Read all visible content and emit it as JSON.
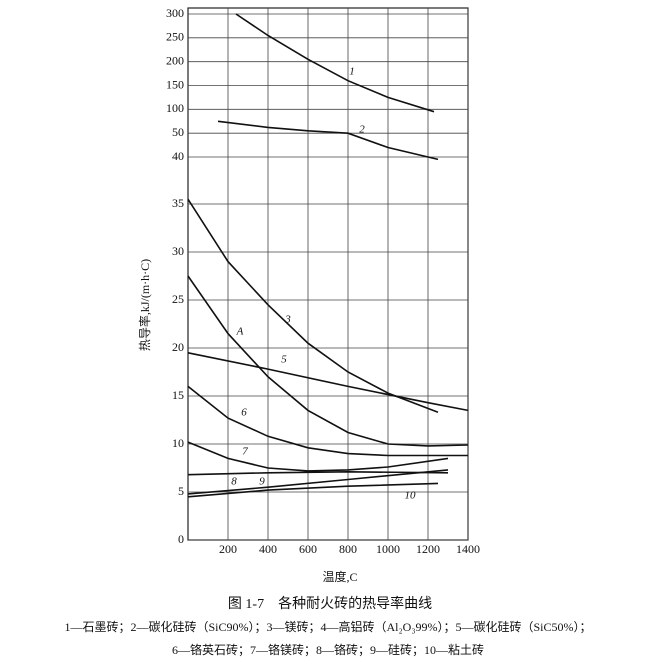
{
  "chart_data": [
    {
      "type": "line",
      "yticks": [
        40,
        50,
        100,
        150,
        200,
        250,
        300
      ],
      "ylim": [
        40,
        300
      ],
      "grid": true,
      "series": [
        {
          "name": "1",
          "color": "#111111",
          "x": [
            240,
            400,
            600,
            800,
            1000,
            1230
          ],
          "values": [
            300,
            255,
            205,
            160,
            125,
            95
          ]
        },
        {
          "name": "2",
          "color": "#111111",
          "x": [
            150,
            400,
            600,
            800,
            1000,
            1250
          ],
          "values": [
            75,
            62,
            55,
            50,
            44,
            39
          ]
        }
      ]
    },
    {
      "type": "line",
      "xlabel": "温度,C",
      "ylabel": "热导率,kJ/(m·h·C)",
      "xlim": [
        0,
        1400
      ],
      "xticks": [
        200,
        400,
        600,
        800,
        1000,
        1200,
        1400
      ],
      "ylim": [
        0,
        35
      ],
      "yticks": [
        0,
        5,
        10,
        15,
        20,
        25,
        30,
        35
      ],
      "grid": true,
      "series": [
        {
          "name": "3",
          "color": "#111111",
          "x": [
            0,
            200,
            400,
            600,
            800,
            1000,
            1250
          ],
          "values": [
            35.5,
            29,
            24.5,
            20.5,
            17.5,
            15.3,
            13.3
          ]
        },
        {
          "name": "A",
          "color": "#111111",
          "x": [
            0,
            200,
            400,
            600,
            800,
            1000,
            1200,
            1400
          ],
          "values": [
            27.5,
            21.5,
            17,
            13.5,
            11.2,
            10,
            9.8,
            9.9
          ]
        },
        {
          "name": "5",
          "color": "#111111",
          "x": [
            0,
            400,
            800,
            1200,
            1400
          ],
          "values": [
            19.5,
            17.8,
            16,
            14.3,
            13.5
          ]
        },
        {
          "name": "6",
          "color": "#111111",
          "x": [
            0,
            200,
            400,
            600,
            800,
            1000,
            1400
          ],
          "values": [
            16,
            12.7,
            10.8,
            9.6,
            9,
            8.8,
            8.8
          ]
        },
        {
          "name": "7",
          "color": "#111111",
          "x": [
            0,
            200,
            400,
            600,
            800,
            1000,
            1300
          ],
          "values": [
            10.2,
            8.5,
            7.5,
            7.2,
            7.3,
            7.6,
            8.5
          ]
        },
        {
          "name": "8",
          "color": "#111111",
          "x": [
            0,
            400,
            800,
            1300
          ],
          "values": [
            6.8,
            7,
            7.1,
            7
          ]
        },
        {
          "name": "9",
          "color": "#111111",
          "x": [
            0,
            400,
            800,
            1300
          ],
          "values": [
            4.8,
            5.5,
            6.3,
            7.3
          ]
        },
        {
          "name": "10",
          "color": "#111111",
          "x": [
            0,
            400,
            800,
            1250
          ],
          "values": [
            4.5,
            5.2,
            5.6,
            5.9
          ]
        }
      ]
    }
  ],
  "caption": "图 1-7　各种耐火砖的热导率曲线",
  "notes": [
    "1—石墨砖；2—碳化硅砖（SiC90%）；3—镁砖；4—高铝砖（Al₂O₃99%）；5—碳化硅砖（SiC50%）；",
    "6—铬英石砖；7—铬镁砖；8—铬砖；9—硅砖；10—粘土砖"
  ]
}
